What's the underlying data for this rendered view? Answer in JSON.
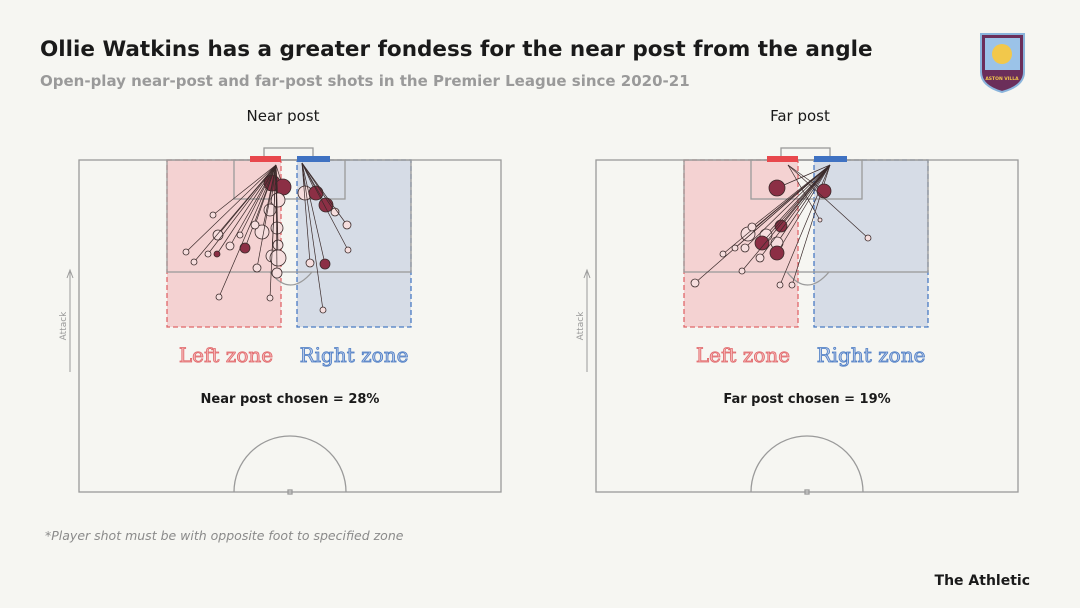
{
  "header": {
    "title": "Ollie Watkins has a greater fondess for the near post from the angle",
    "subtitle": "Open-play near-post and far-post shots in the Premier League since 2020-21"
  },
  "logo": {
    "text": "ASTON VILLA"
  },
  "panels": [
    {
      "title": "Near post",
      "attack": "Attack",
      "zones": [
        "Left zone",
        "Right zone"
      ],
      "stat": "Near post chosen = 28%"
    },
    {
      "title": "Far post",
      "attack": "Attack",
      "zones": [
        "Left zone",
        "Right zone"
      ],
      "stat": "Far post chosen = 19%"
    }
  ],
  "footnote": "*Player shot must be with opposite foot to specified zone",
  "brand": "The Athletic"
}
